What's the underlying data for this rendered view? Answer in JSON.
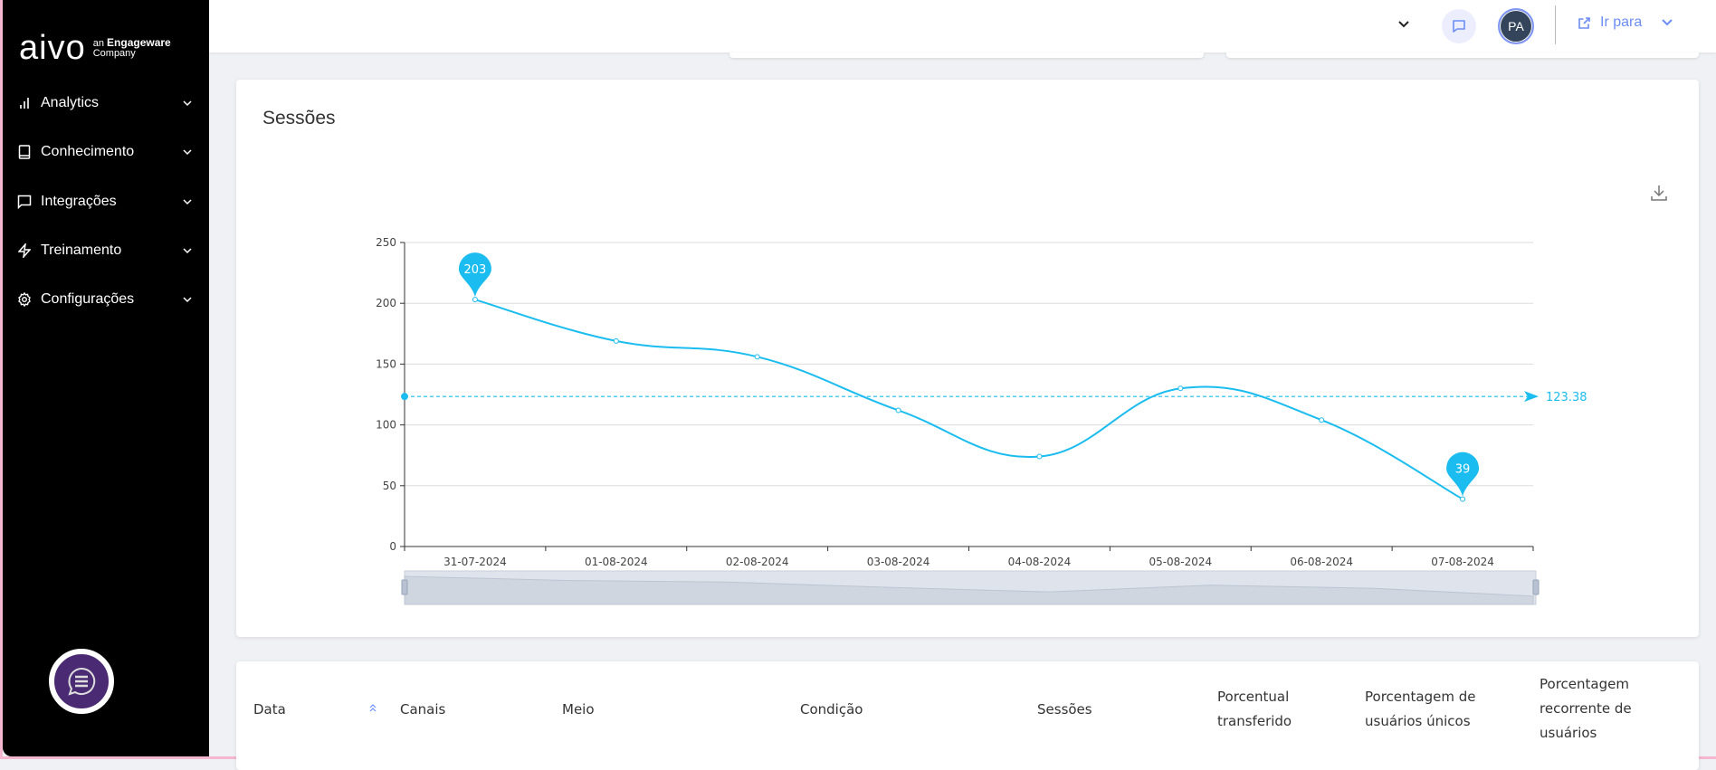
{
  "sidebar": {
    "logo": {
      "mark": "aivo",
      "tagline_prefix": "an",
      "tagline_brand": "Engageware",
      "tagline_suffix": "Company"
    },
    "items": [
      {
        "label": "Analytics",
        "icon": "bar-chart-icon"
      },
      {
        "label": "Conhecimento",
        "icon": "book-icon"
      },
      {
        "label": "Integrações",
        "icon": "message-square-icon"
      },
      {
        "label": "Treinamento",
        "icon": "lightning-icon"
      },
      {
        "label": "Configurações",
        "icon": "gear-icon"
      }
    ]
  },
  "topbar": {
    "avatar_initials": "PA",
    "goto_label": "Ir para"
  },
  "chart_card": {
    "title": "Sessões"
  },
  "chart_data": {
    "type": "line",
    "title": "Sessões",
    "categories": [
      "31-07-2024",
      "01-08-2024",
      "02-08-2024",
      "03-08-2024",
      "04-08-2024",
      "05-08-2024",
      "06-08-2024",
      "07-08-2024"
    ],
    "series": [
      {
        "name": "Sessões",
        "values": [
          203,
          169,
          156,
          112,
          74,
          130,
          104,
          39
        ]
      }
    ],
    "ylim": [
      0,
      250
    ],
    "yticks": [
      0,
      50,
      100,
      150,
      200,
      250
    ],
    "ytick_labels": [
      "0",
      "50",
      "100",
      "150",
      "200",
      "250"
    ],
    "max_marker": {
      "label": "203",
      "value": 203,
      "category": "31-07-2024"
    },
    "min_marker": {
      "label": "39",
      "value": 39,
      "category": "07-08-2024"
    },
    "mean_line": {
      "label": "123.38",
      "value": 123.38
    },
    "grid": true,
    "smooth": true,
    "color": "#1bbcf0"
  },
  "table": {
    "headers": [
      "Data",
      "Canais",
      "Meio",
      "Condição",
      "Sessões",
      "Porcentual transferido",
      "Porcentagem de usuários únicos",
      "Porcentagem recorrente de usuários"
    ]
  },
  "colors": {
    "accent": "#1bbcf0",
    "link": "#6c8ef5",
    "sidebar": "#000000",
    "fab": "#4a2a72"
  }
}
